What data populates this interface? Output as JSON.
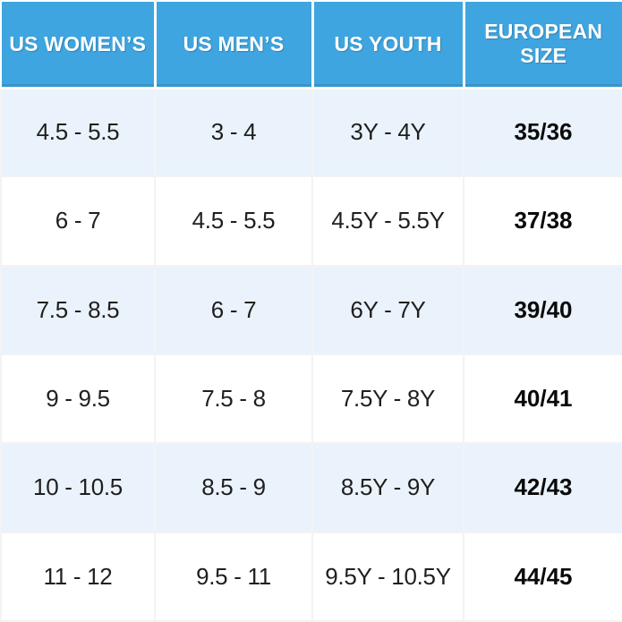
{
  "chart_data": {
    "type": "table",
    "columns": [
      "US WOMEN’S",
      "US MEN’S",
      "US YOUTH",
      "EUROPEAN SIZE"
    ],
    "rows": [
      [
        "4.5 - 5.5",
        "3 - 4",
        "3Y - 4Y",
        "35/36"
      ],
      [
        "6 - 7",
        "4.5 - 5.5",
        "4.5Y - 5.5Y",
        "37/38"
      ],
      [
        "7.5 - 8.5",
        "6 - 7",
        "6Y - 7Y",
        "39/40"
      ],
      [
        "9 - 9.5",
        "7.5 - 8",
        "7.5Y - 8Y",
        "40/41"
      ],
      [
        "10 - 10.5",
        "8.5 - 9",
        "8.5Y - 9Y",
        "42/43"
      ],
      [
        "11 - 12",
        "9.5 - 11",
        "9.5Y - 10.5Y",
        "44/45"
      ]
    ],
    "layout_hints": {
      "header_position": "top",
      "alternating_rows": true,
      "bold_column": "EUROPEAN SIZE"
    }
  },
  "colors": {
    "header_bg": "#3FA5E0",
    "header_border": "#2E8FC8",
    "header_text": "#FFFFFF",
    "row_alt_bg": "#EAF3FB",
    "row_bg": "#FFFFFF",
    "body_text": "#1F1F1F",
    "euro_text": "#0A0A0A",
    "grid_line": "#F3F3F3"
  }
}
